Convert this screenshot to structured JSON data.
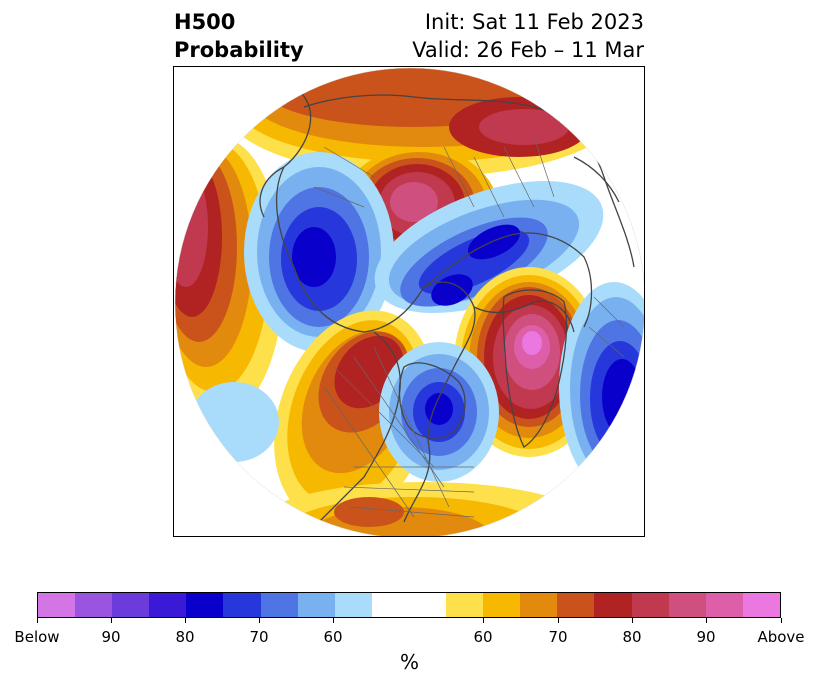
{
  "title": {
    "left_line1": "H500",
    "left_line2": "Probability",
    "right_line1": "Init: Sat 11 Feb 2023",
    "right_line2": "Valid: 26 Feb – 11 Mar"
  },
  "map": {
    "projection": "north-polar-stereographic",
    "anomalies": [
      {
        "name": "Below",
        "region": "Western Canada / Pacific NW",
        "level": "80"
      },
      {
        "name": "Above",
        "region": "Northeast Pacific / Alaska",
        "level": "Above"
      },
      {
        "name": "Below",
        "region": "Northern Europe",
        "level": "80"
      },
      {
        "name": "Above",
        "region": "Eastern Russia",
        "level": "90"
      },
      {
        "name": "Below",
        "region": "Siberia",
        "level": "80"
      },
      {
        "name": "Above",
        "region": "Greenland / North Atlantic",
        "level": "80"
      },
      {
        "name": "Below",
        "region": "Labrador Sea / Hudson Bay",
        "level": "80"
      }
    ]
  },
  "colorbar": {
    "colors": [
      "#d475e6",
      "#9a55e0",
      "#6b3bdc",
      "#3a1ad6",
      "#0a00cc",
      "#2638dc",
      "#4f75e4",
      "#79b1f0",
      "#a9dcfa",
      "#ffffff",
      "#ffffff",
      "#fde04a",
      "#f6b800",
      "#e28a0e",
      "#c9531a",
      "#b12323",
      "#c0394f",
      "#cf4f7f",
      "#de5fa9",
      "#ea78e0"
    ],
    "tick_labels": [
      "Below",
      "90",
      "80",
      "70",
      "60",
      "60",
      "70",
      "80",
      "90",
      "Above"
    ],
    "unit_label": "%"
  }
}
